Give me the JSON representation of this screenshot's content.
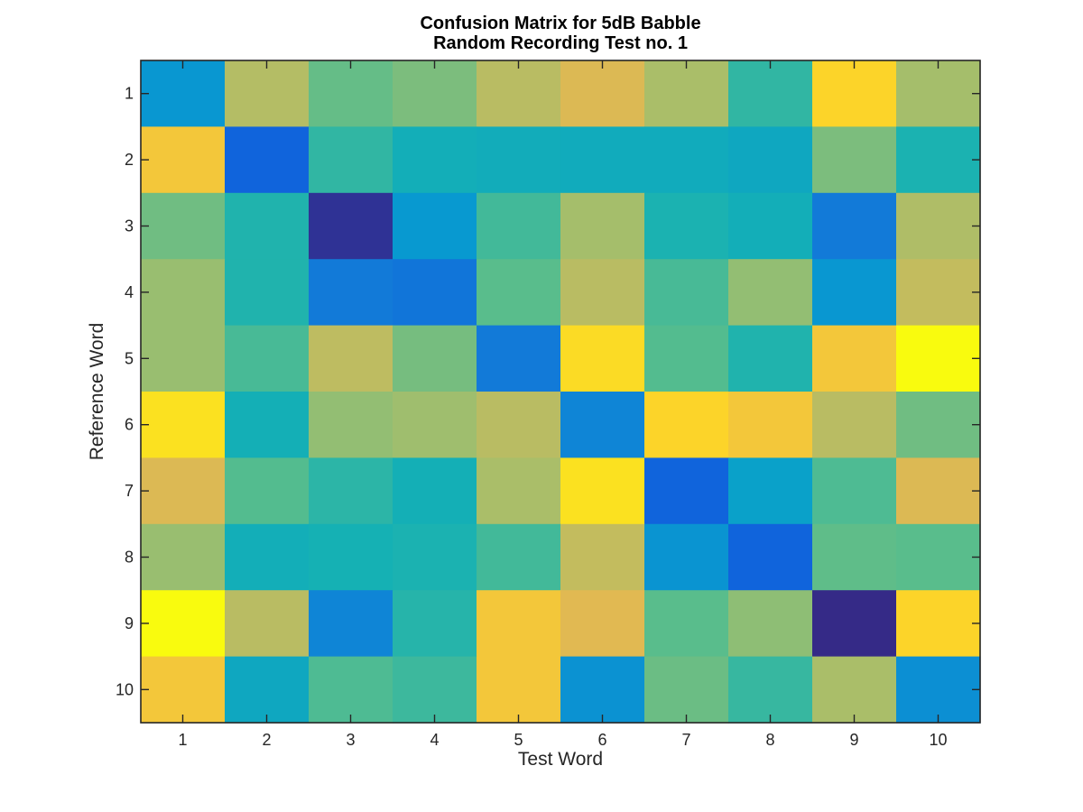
{
  "chart_data": {
    "type": "heatmap",
    "title": [
      "Confusion Matrix for 5dB Babble",
      "Random Recording Test no. 1"
    ],
    "xlabel": "Test Word",
    "ylabel": "Reference Word",
    "x_ticks": [
      "1",
      "2",
      "3",
      "4",
      "5",
      "6",
      "7",
      "8",
      "9",
      "10"
    ],
    "y_ticks": [
      "1",
      "2",
      "3",
      "4",
      "5",
      "6",
      "7",
      "8",
      "9",
      "10"
    ],
    "colormap": "parula",
    "grid": false,
    "values": [
      [
        0.35,
        0.78,
        0.64,
        0.68,
        0.79,
        0.86,
        0.76,
        0.55,
        0.94,
        0.75
      ],
      [
        0.91,
        0.15,
        0.55,
        0.48,
        0.47,
        0.46,
        0.46,
        0.44,
        0.68,
        0.51
      ],
      [
        0.66,
        0.52,
        0.02,
        0.36,
        0.58,
        0.75,
        0.51,
        0.48,
        0.24,
        0.77
      ],
      [
        0.73,
        0.52,
        0.24,
        0.22,
        0.62,
        0.79,
        0.59,
        0.72,
        0.35,
        0.81
      ],
      [
        0.73,
        0.59,
        0.8,
        0.67,
        0.24,
        0.95,
        0.61,
        0.52,
        0.91,
        1.0
      ],
      [
        0.96,
        0.49,
        0.72,
        0.74,
        0.79,
        0.28,
        0.94,
        0.91,
        0.79,
        0.66
      ],
      [
        0.86,
        0.61,
        0.54,
        0.49,
        0.76,
        0.96,
        0.15,
        0.4,
        0.6,
        0.86
      ],
      [
        0.73,
        0.48,
        0.5,
        0.51,
        0.58,
        0.81,
        0.34,
        0.15,
        0.63,
        0.62
      ],
      [
        1.0,
        0.79,
        0.28,
        0.53,
        0.91,
        0.87,
        0.62,
        0.71,
        0.0,
        0.94
      ],
      [
        0.91,
        0.44,
        0.6,
        0.57,
        0.91,
        0.33,
        0.65,
        0.56,
        0.76,
        0.32
      ]
    ]
  }
}
